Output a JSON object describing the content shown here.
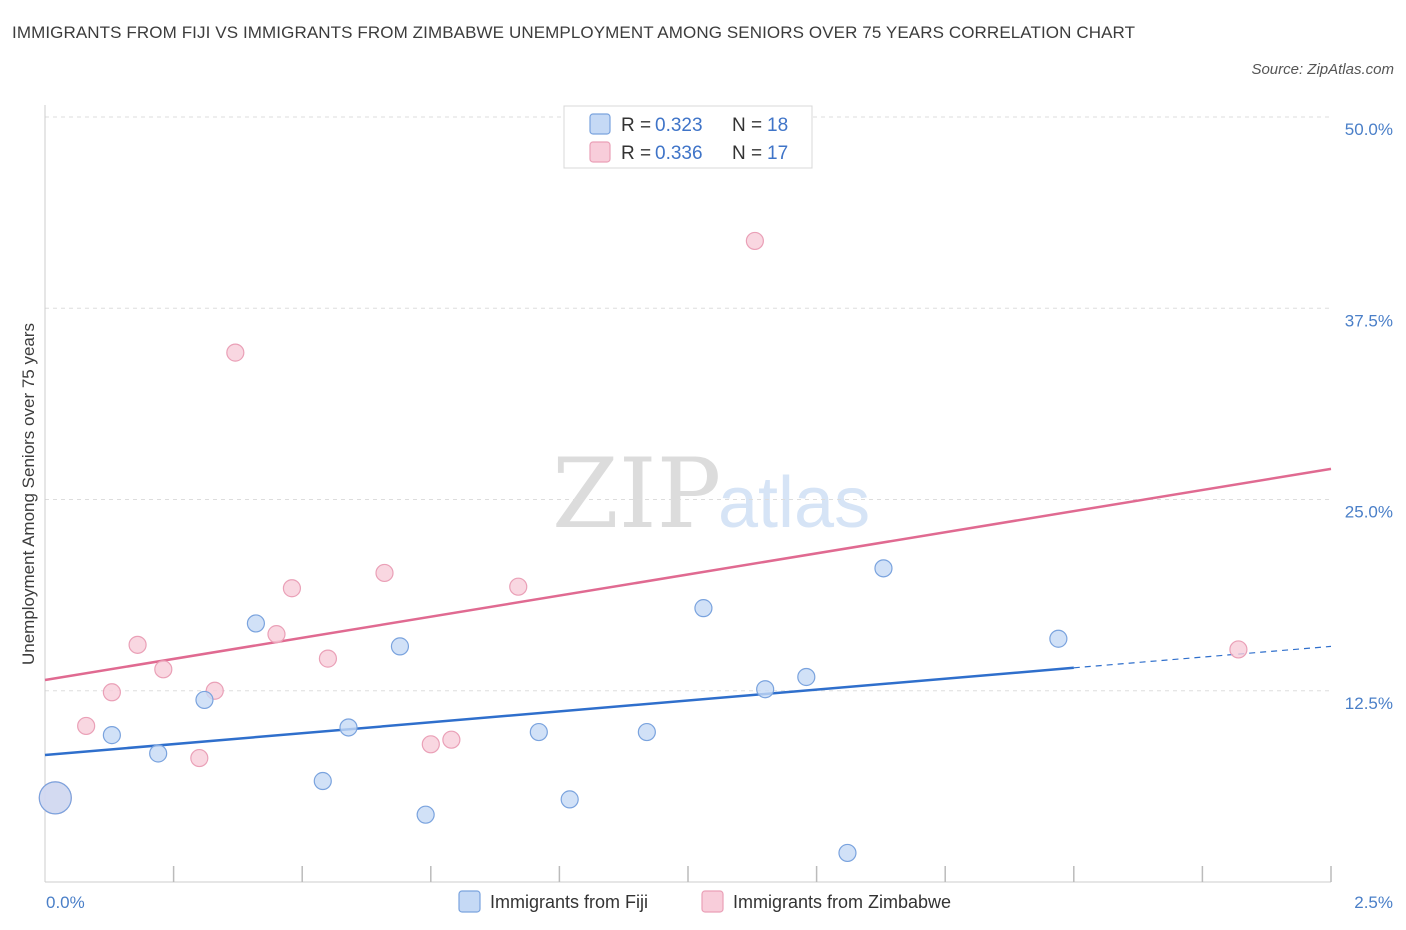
{
  "title": "IMMIGRANTS FROM FIJI VS IMMIGRANTS FROM ZIMBABWE UNEMPLOYMENT AMONG SENIORS OVER 75 YEARS CORRELATION CHART",
  "source": "Source: ZipAtlas.com",
  "colors": {
    "fiji_fill": "#c5d9f5",
    "fiji_stroke": "#7aa3de",
    "fiji_line": "#2f6fcc",
    "zim_fill": "#f8cdda",
    "zim_stroke": "#eaa0b7",
    "zim_line": "#e06a91",
    "grid": "#dddddd",
    "tick_text": "#4a7fc8"
  },
  "legend": {
    "fiji": {
      "r_label": "R = ",
      "r_value": "0.323",
      "n_label": "N = ",
      "n_value": "18"
    },
    "zim": {
      "r_label": "R = ",
      "r_value": "0.336",
      "n_label": "N = ",
      "n_value": "17"
    }
  },
  "watermark": {
    "zip": "ZIP",
    "atlas": "atlas"
  },
  "chart_data": {
    "type": "scatter",
    "title": "IMMIGRANTS FROM FIJI VS IMMIGRANTS FROM ZIMBABWE UNEMPLOYMENT AMONG SENIORS OVER 75 YEARS CORRELATION CHART",
    "xlabel": "",
    "ylabel": "Unemployment Among Seniors over 75 years",
    "xlim": [
      0,
      2.5
    ],
    "ylim": [
      0,
      50
    ],
    "x_tick_labels": [
      "0.0%",
      "2.5%"
    ],
    "y_ticks": [
      12.5,
      25.0,
      37.5,
      50.0
    ],
    "y_tick_labels": [
      "12.5%",
      "25.0%",
      "37.5%",
      "50.0%"
    ],
    "grid": true,
    "legend_position": "top-center",
    "series": [
      {
        "name": "Immigrants from Fiji",
        "points": [
          {
            "x": 0.02,
            "y": 5.5,
            "big": true
          },
          {
            "x": 0.13,
            "y": 9.6
          },
          {
            "x": 0.22,
            "y": 8.4
          },
          {
            "x": 0.31,
            "y": 11.9
          },
          {
            "x": 0.41,
            "y": 16.9
          },
          {
            "x": 0.54,
            "y": 6.6
          },
          {
            "x": 0.59,
            "y": 10.1
          },
          {
            "x": 0.69,
            "y": 15.4
          },
          {
            "x": 0.74,
            "y": 4.4
          },
          {
            "x": 0.96,
            "y": 9.8
          },
          {
            "x": 1.02,
            "y": 5.4
          },
          {
            "x": 1.17,
            "y": 9.8
          },
          {
            "x": 1.28,
            "y": 17.9
          },
          {
            "x": 1.4,
            "y": 12.6
          },
          {
            "x": 1.48,
            "y": 13.4
          },
          {
            "x": 1.56,
            "y": 1.9
          },
          {
            "x": 1.63,
            "y": 20.5
          },
          {
            "x": 1.97,
            "y": 15.9
          }
        ],
        "trend": {
          "x0": 0.0,
          "y0": 8.3,
          "x1": 2.0,
          "y1": 14.0,
          "dash_x1": 2.5,
          "dash_y1": 15.4
        }
      },
      {
        "name": "Immigrants from Zimbabwe",
        "points": [
          {
            "x": 0.02,
            "y": 5.5,
            "big": true
          },
          {
            "x": 0.08,
            "y": 10.2
          },
          {
            "x": 0.13,
            "y": 12.4
          },
          {
            "x": 0.18,
            "y": 15.5
          },
          {
            "x": 0.23,
            "y": 13.9
          },
          {
            "x": 0.3,
            "y": 8.1
          },
          {
            "x": 0.33,
            "y": 12.5
          },
          {
            "x": 0.37,
            "y": 34.6
          },
          {
            "x": 0.45,
            "y": 16.2
          },
          {
            "x": 0.48,
            "y": 19.2
          },
          {
            "x": 0.55,
            "y": 14.6
          },
          {
            "x": 0.66,
            "y": 20.2
          },
          {
            "x": 0.75,
            "y": 9.0
          },
          {
            "x": 0.79,
            "y": 9.3
          },
          {
            "x": 0.92,
            "y": 19.3
          },
          {
            "x": 1.38,
            "y": 41.9
          },
          {
            "x": 2.32,
            "y": 15.2
          }
        ],
        "trend": {
          "x0": 0.0,
          "y0": 13.2,
          "x1": 2.5,
          "y1": 27.0
        }
      }
    ]
  }
}
